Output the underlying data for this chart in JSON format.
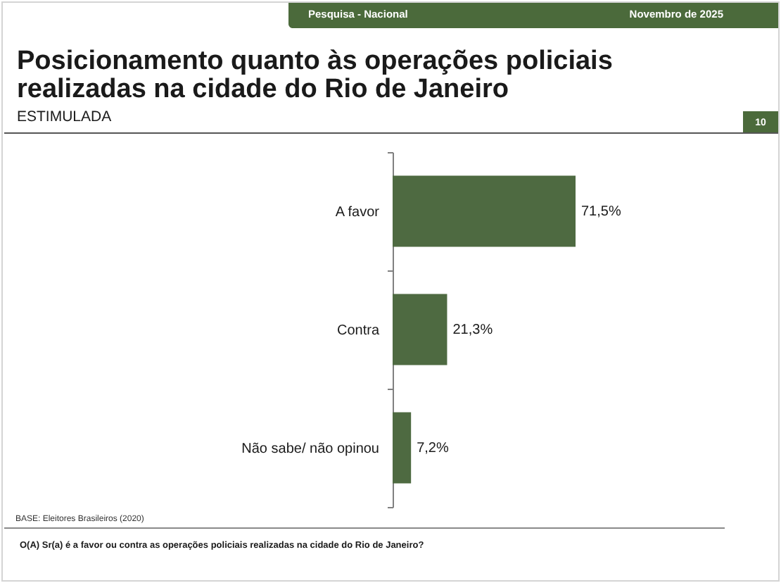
{
  "chart_data": {
    "type": "bar",
    "orientation": "horizontal",
    "title": "Posicionamento quanto às operações policiais realizadas na cidade do Rio de Janeiro",
    "subtitle": "ESTIMULADA",
    "categories": [
      "A favor",
      "Contra",
      "Não sabe/ não opinou"
    ],
    "values": [
      71.5,
      21.3,
      7.2
    ],
    "value_labels": [
      "71,5%",
      "21,3%",
      "7,2%"
    ],
    "color": "#4e6a41",
    "annotations": [
      "Pesquisa - Nacional",
      "Novembro de 2025",
      "10",
      "BASE: Eleitores Brasileiros (2020)",
      "O(A) Sr(a) é a favor ou contra as operações policiais realizadas na cidade do Rio de Janeiro?"
    ]
  }
}
